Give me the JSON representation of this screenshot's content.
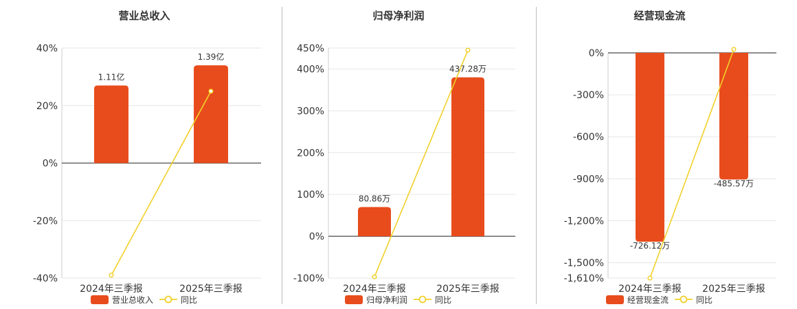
{
  "colors": {
    "bar": "#E84C1C",
    "line": "#F2D02A",
    "axis": "#666666",
    "grid": "#e6e6e6",
    "text": "#333333"
  },
  "legend_labels": {
    "line": "同比"
  },
  "chart_data": [
    {
      "type": "bar",
      "title": "营业总收入",
      "categories": [
        "2024年三季报",
        "2025年三季报"
      ],
      "series": [
        {
          "name": "营业总收入",
          "type": "bar",
          "labels": [
            "1.11亿",
            "1.39亿"
          ]
        },
        {
          "name": "同比",
          "type": "line",
          "values": [
            -39,
            25
          ]
        }
      ],
      "yticks": [
        "40%",
        "20%",
        "0%",
        "-20%",
        "-40%"
      ],
      "ylim": [
        -40,
        40
      ],
      "bar_heights": [
        27,
        34
      ],
      "legend_position": "bottom"
    },
    {
      "type": "bar",
      "title": "归母净利润",
      "categories": [
        "2024年三季报",
        "2025年三季报"
      ],
      "series": [
        {
          "name": "归母净利润",
          "type": "bar",
          "labels": [
            "80.86万",
            "437.28万"
          ]
        },
        {
          "name": "同比",
          "type": "line",
          "values": [
            -97,
            445
          ]
        }
      ],
      "yticks": [
        "450%",
        "400%",
        "300%",
        "200%",
        "100%",
        "0%",
        "-100%"
      ],
      "ylim": [
        -100,
        450
      ],
      "bar_heights": [
        70,
        380
      ],
      "legend_position": "bottom"
    },
    {
      "type": "bar",
      "title": "经营现金流",
      "categories": [
        "2024年三季报",
        "2025年三季报"
      ],
      "series": [
        {
          "name": "经营现金流",
          "type": "bar",
          "labels": [
            "-726.12万",
            "-485.57万"
          ]
        },
        {
          "name": "同比",
          "type": "line",
          "values": [
            -1610,
            25
          ]
        }
      ],
      "yticks": [
        "0%",
        "-300%",
        "-600%",
        "-900%",
        "-1,200%",
        "-1,500%",
        "-1,610%"
      ],
      "ylim": [
        -1610,
        0
      ],
      "bar_heights": [
        -1350,
        -905
      ],
      "legend_position": "bottom"
    }
  ]
}
